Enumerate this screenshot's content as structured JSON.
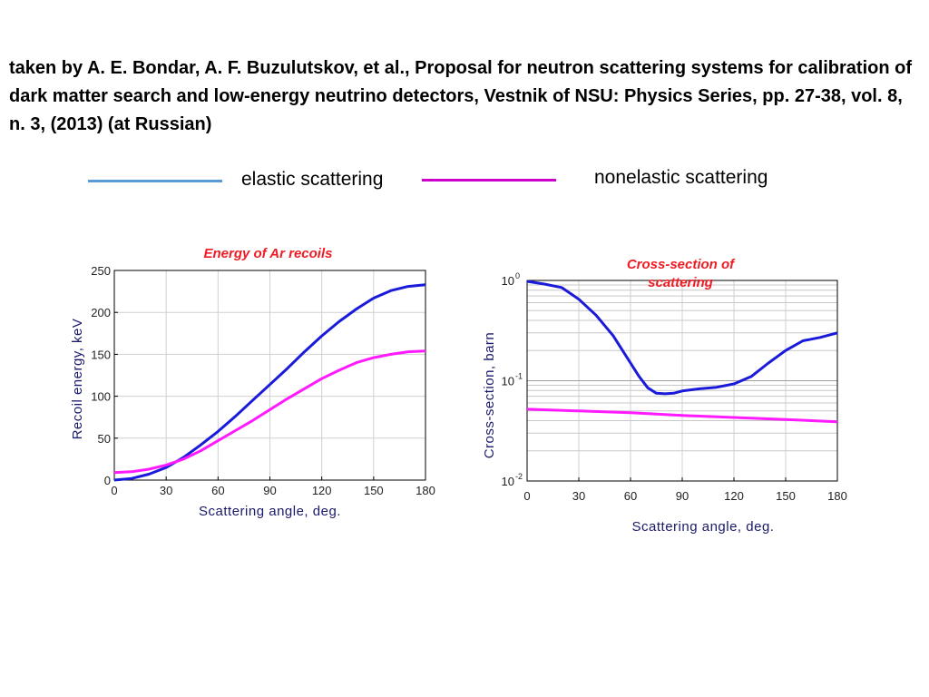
{
  "citation": "taken by A. E. Bondar, A. F. Buzulutskov, et al., Proposal for neutron scattering systems for calibration of dark matter search and low-energy neutrino detectors, Vestnik of NSU: Physics Series, pp. 27-38, vol. 8, n. 3, (2013) (at Russian)",
  "legend": {
    "items": [
      {
        "label": "elastic scattering",
        "color": "#5b9bd5"
      },
      {
        "label": "nonelastic scattering",
        "color": "#cc00cc"
      }
    ]
  },
  "colors": {
    "title": "#ee1c25",
    "elastic_curve": "#1a1adb",
    "nonelastic_curve": "#ff1aff"
  },
  "chart_data": [
    {
      "type": "line",
      "title": "Energy of Ar recoils",
      "xlabel": "Scattering angle, deg.",
      "ylabel": "Recoil  energy, keV",
      "xlim": [
        0,
        180
      ],
      "ylim": [
        0,
        250
      ],
      "xticks": [
        0,
        30,
        60,
        90,
        120,
        150,
        180
      ],
      "yticks": [
        0,
        50,
        100,
        150,
        200,
        250
      ],
      "grid": true,
      "series": [
        {
          "color": "#1a1adb",
          "x": [
            0,
            10,
            20,
            30,
            40,
            50,
            60,
            70,
            80,
            90,
            100,
            110,
            120,
            130,
            140,
            150,
            160,
            170,
            180
          ],
          "y": [
            0,
            2,
            7,
            15,
            27,
            42,
            58,
            76,
            95,
            114,
            133,
            153,
            172,
            189,
            204,
            217,
            226,
            231,
            233
          ]
        },
        {
          "color": "#ff1aff",
          "x": [
            0,
            10,
            20,
            30,
            40,
            50,
            60,
            70,
            80,
            90,
            100,
            110,
            120,
            130,
            140,
            150,
            160,
            170,
            180
          ],
          "y": [
            9,
            10,
            13,
            18,
            25,
            35,
            47,
            59,
            71,
            84,
            97,
            109,
            121,
            131,
            140,
            146,
            150,
            153,
            154
          ]
        }
      ]
    },
    {
      "type": "line",
      "title": "Cross-section of scattering",
      "xlabel": "Scattering angle, deg.",
      "ylabel": "Cross-section, barn",
      "xlim": [
        0,
        180
      ],
      "ylim": [
        0.01,
        1
      ],
      "yscale": "log",
      "xticks": [
        0,
        30,
        60,
        90,
        120,
        150,
        180
      ],
      "yticks": [
        {
          "base": "10",
          "exp": "0",
          "value": 1
        },
        {
          "base": "10",
          "exp": "-1",
          "value": 0.1
        },
        {
          "base": "10",
          "exp": "-2",
          "value": 0.01
        }
      ],
      "grid": true,
      "series": [
        {
          "color": "#1a1adb",
          "x": [
            0,
            10,
            20,
            30,
            40,
            50,
            60,
            65,
            70,
            75,
            80,
            85,
            90,
            100,
            110,
            120,
            130,
            140,
            150,
            160,
            170,
            180
          ],
          "y": [
            0.98,
            0.92,
            0.85,
            0.65,
            0.45,
            0.28,
            0.15,
            0.11,
            0.085,
            0.075,
            0.074,
            0.075,
            0.079,
            0.083,
            0.086,
            0.093,
            0.11,
            0.15,
            0.2,
            0.25,
            0.27,
            0.3
          ]
        },
        {
          "color": "#ff1aff",
          "x": [
            0,
            30,
            60,
            90,
            120,
            150,
            180
          ],
          "y": [
            0.052,
            0.05,
            0.048,
            0.045,
            0.043,
            0.041,
            0.039
          ]
        }
      ]
    }
  ]
}
